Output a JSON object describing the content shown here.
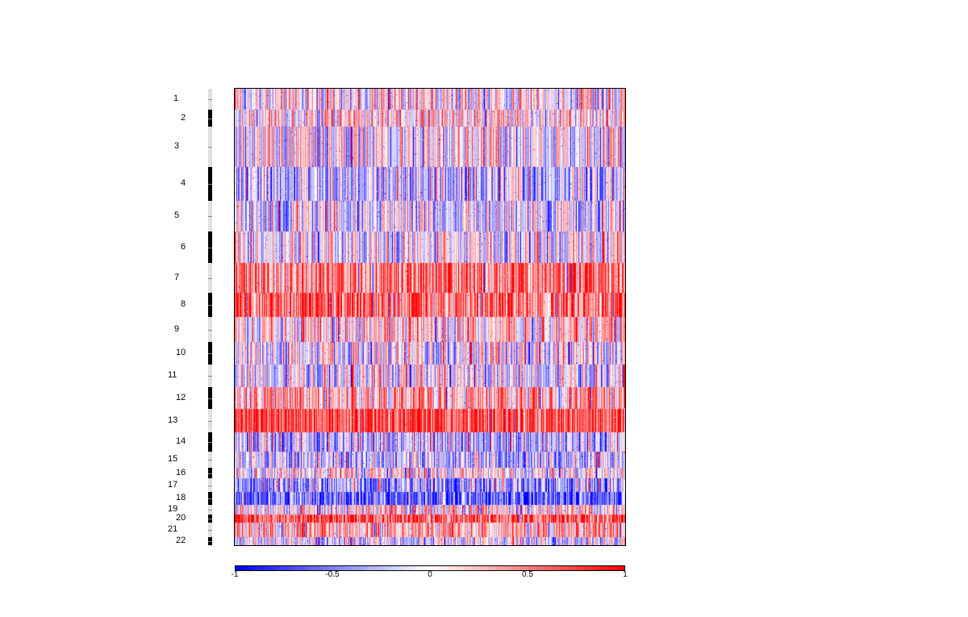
{
  "chart_data": {
    "type": "heatmap",
    "colorscale": {
      "low": "#0000ff",
      "mid": "#ffffff",
      "high": "#ff0000"
    },
    "zlim": [
      -1,
      1
    ],
    "colorbar_ticks": [
      "-1",
      "-0.5",
      "0",
      "0.5",
      "1"
    ],
    "chromosomes": [
      "1",
      "2",
      "3",
      "4",
      "5",
      "6",
      "7",
      "8",
      "9",
      "10",
      "11",
      "12",
      "13",
      "14",
      "15",
      "16",
      "17",
      "18",
      "19",
      "20",
      "21",
      "22"
    ],
    "chromosome_mean_values": [
      0.05,
      0.12,
      0.02,
      -0.25,
      -0.1,
      -0.05,
      0.55,
      0.6,
      0.15,
      -0.05,
      -0.05,
      0.3,
      0.75,
      -0.25,
      -0.2,
      0.05,
      -0.35,
      -0.6,
      0.1,
      0.7,
      0.3,
      -0.1
    ],
    "legend_placement": "bottom",
    "grid": false
  }
}
